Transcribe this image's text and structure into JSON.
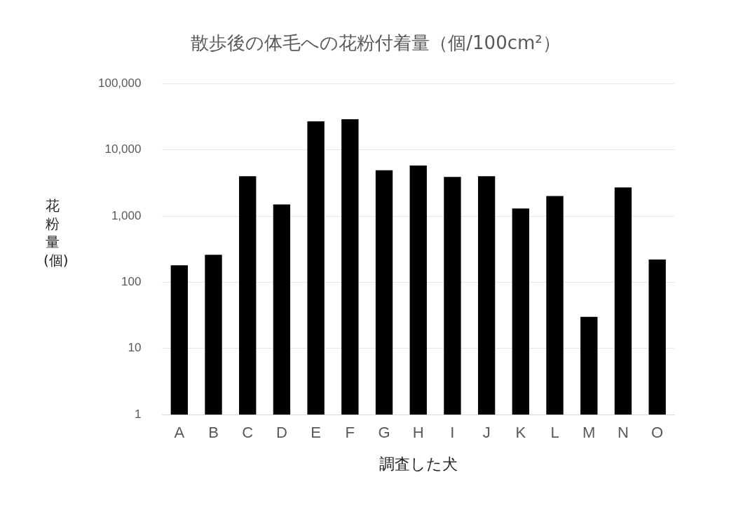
{
  "chart_data": {
    "type": "bar",
    "title": "散歩後の体毛への花粉付着量（個/100cm²）",
    "xlabel": "調査した犬",
    "ylabel": "花粉量(個)",
    "categories": [
      "A",
      "B",
      "C",
      "D",
      "E",
      "F",
      "G",
      "H",
      "I",
      "J",
      "K",
      "L",
      "M",
      "N",
      "O"
    ],
    "values": [
      180,
      260,
      4000,
      1500,
      27000,
      29000,
      4900,
      5800,
      3900,
      4000,
      1300,
      2000,
      30,
      2700,
      220
    ],
    "color": "#000000",
    "log": true,
    "ylim": [
      1,
      100000
    ],
    "yticks": [
      1,
      10,
      100,
      {
        "value": 1000,
        "label": "1,000"
      },
      {
        "value": 10000,
        "label": "10,000"
      },
      {
        "value": 100000,
        "label": "100,000"
      }
    ],
    "grid": "y",
    "legend": false
  }
}
